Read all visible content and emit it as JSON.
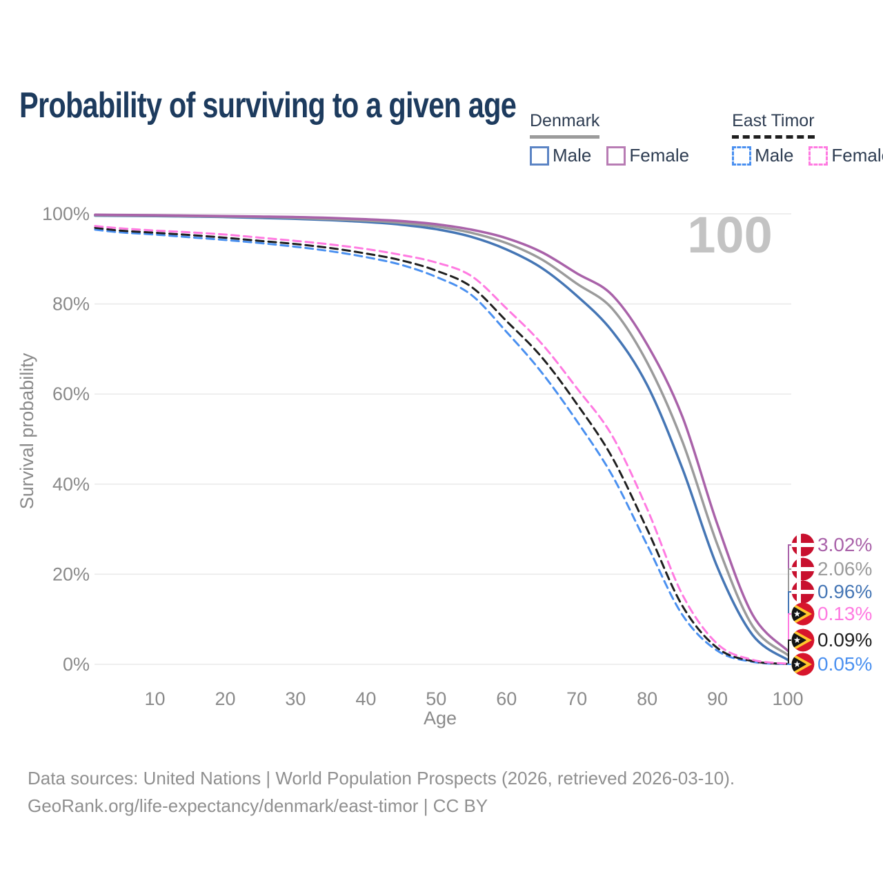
{
  "title": "Probability of surviving to a given age",
  "legend": {
    "groups": [
      {
        "title": "Denmark",
        "line_style": "solid",
        "line_color": "#9b9b9b",
        "items": [
          {
            "label": "Male",
            "color": "#5b84c4",
            "dashed": false
          },
          {
            "label": "Female",
            "color": "#b87cb4",
            "dashed": false
          }
        ]
      },
      {
        "title": "East Timor",
        "line_style": "dashed",
        "line_color": "#1f1f1f",
        "items": [
          {
            "label": "Male",
            "color": "#4a90f0",
            "dashed": true
          },
          {
            "label": "Female",
            "color": "#ff7ae1",
            "dashed": true
          }
        ]
      }
    ]
  },
  "chart_data": {
    "type": "line",
    "title": "Probability of surviving to a given age",
    "xlabel": "Age",
    "ylabel": "Survival probability",
    "xlim": [
      0,
      100
    ],
    "ylim": [
      0,
      100
    ],
    "grid": "horizontal",
    "legend_position": "top-right",
    "annotation": {
      "text": "100"
    },
    "x_ticks": [
      10,
      20,
      30,
      40,
      50,
      60,
      70,
      80,
      90,
      100
    ],
    "y_ticks": [
      {
        "value": 0,
        "label": "0%"
      },
      {
        "value": 20,
        "label": "20%"
      },
      {
        "value": 40,
        "label": "40%"
      },
      {
        "value": 60,
        "label": "60%"
      },
      {
        "value": 80,
        "label": "80%"
      },
      {
        "value": 100,
        "label": "100%"
      }
    ],
    "x": [
      1.5,
      5,
      10,
      15,
      20,
      25,
      30,
      35,
      40,
      45,
      50,
      55,
      60,
      65,
      70,
      75,
      80,
      85,
      90,
      95,
      100
    ],
    "series": [
      {
        "name": "Denmark Female",
        "country": "Denmark",
        "sex": "Female",
        "flag": "denmark",
        "color": "#a962a9",
        "dashed": false,
        "end_label": "3.02%",
        "values": [
          99.8,
          99.75,
          99.7,
          99.6,
          99.5,
          99.4,
          99.3,
          99.1,
          98.8,
          98.4,
          97.7,
          96.5,
          94.6,
          91.5,
          86.8,
          82.0,
          71.0,
          55.0,
          31.0,
          11.0,
          3.02
        ]
      },
      {
        "name": "Denmark",
        "country": "Denmark",
        "sex": "",
        "flag": "denmark",
        "color": "#9b9b9b",
        "dashed": false,
        "end_label": "2.06%",
        "values": [
          99.7,
          99.65,
          99.6,
          99.5,
          99.4,
          99.3,
          99.1,
          98.8,
          98.5,
          98.0,
          97.2,
          95.8,
          93.5,
          89.9,
          84.5,
          79.0,
          67.0,
          49.5,
          26.5,
          8.5,
          2.06
        ]
      },
      {
        "name": "Denmark Male",
        "country": "Denmark",
        "sex": "Male",
        "flag": "denmark",
        "color": "#4576b5",
        "dashed": false,
        "end_label": "0.96%",
        "values": [
          99.6,
          99.55,
          99.5,
          99.4,
          99.3,
          99.1,
          98.9,
          98.6,
          98.2,
          97.6,
          96.6,
          94.9,
          92.1,
          88.0,
          81.8,
          74.0,
          62.0,
          43.5,
          21.5,
          6.5,
          0.96
        ]
      },
      {
        "name": "East Timor Female",
        "country": "East Timor",
        "sex": "Female",
        "flag": "east-timor",
        "color": "#ff7ae1",
        "dashed": true,
        "end_label": "0.13%",
        "values": [
          97.3,
          96.8,
          96.3,
          95.9,
          95.4,
          94.7,
          94.0,
          93.2,
          92.2,
          90.9,
          89.2,
          86.2,
          79.0,
          71.2,
          61.3,
          50.8,
          34.5,
          15.5,
          4.5,
          1.0,
          0.13
        ]
      },
      {
        "name": "East Timor",
        "country": "East Timor",
        "sex": "",
        "flag": "east-timor",
        "color": "#1f1f1f",
        "dashed": true,
        "end_label": "0.09%",
        "values": [
          96.9,
          96.3,
          95.8,
          95.3,
          94.7,
          94.0,
          93.3,
          92.4,
          91.2,
          89.7,
          87.4,
          83.8,
          76.2,
          68.2,
          57.8,
          46.0,
          30.0,
          13.0,
          3.6,
          0.7,
          0.09
        ]
      },
      {
        "name": "East Timor Male",
        "country": "East Timor",
        "sex": "Male",
        "flag": "east-timor",
        "color": "#4a90f0",
        "dashed": true,
        "end_label": "0.05%",
        "values": [
          96.5,
          95.9,
          95.4,
          94.8,
          94.2,
          93.5,
          92.7,
          91.7,
          90.4,
          88.7,
          86.0,
          82.0,
          73.8,
          64.8,
          54.0,
          42.0,
          26.5,
          11.0,
          3.0,
          0.55,
          0.05
        ]
      }
    ]
  },
  "footer": {
    "line1": "Data sources: United Nations | World Population Prospects (2026, retrieved 2026-03-10).",
    "line2": "GeoRank.org/life-expectancy/denmark/east-timor | CC BY"
  }
}
